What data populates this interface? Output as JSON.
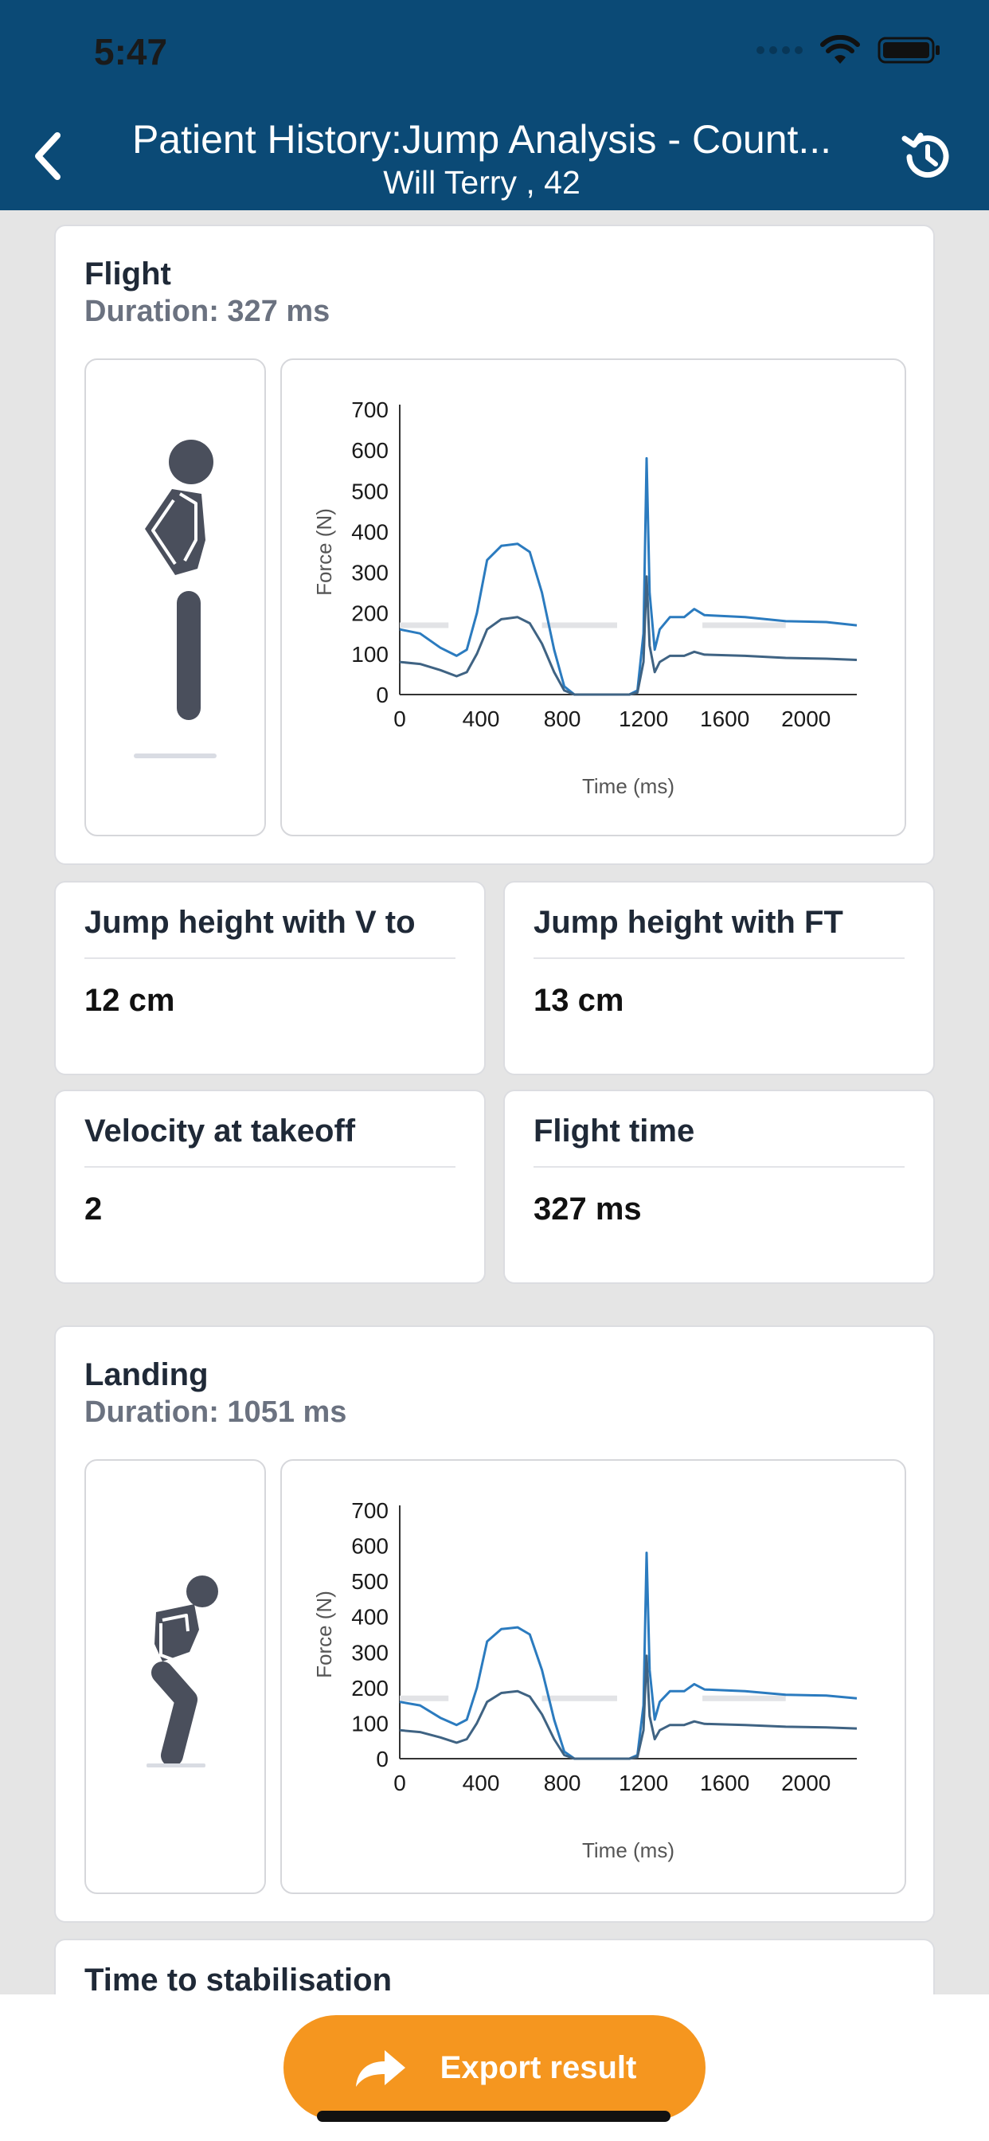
{
  "status_bar": {
    "time": "5:47"
  },
  "header": {
    "title": "Patient History:Jump Analysis - Count...",
    "subtitle": "Will Terry , 42"
  },
  "sections": [
    {
      "title": "Flight",
      "duration": "Duration: 327 ms"
    },
    {
      "title": "Landing",
      "duration": "Duration: 1051 ms"
    }
  ],
  "metrics": [
    {
      "label": "Jump height with V to",
      "value": "12 cm"
    },
    {
      "label": "Jump height with FT",
      "value": "13 cm"
    },
    {
      "label": "Velocity at takeoff",
      "value": "2"
    },
    {
      "label": "Flight time",
      "value": "327 ms"
    }
  ],
  "next_section": {
    "title": "Time to stabilisation"
  },
  "footer": {
    "export_label": "Export result"
  },
  "colors": {
    "header": "#0b4a76",
    "accent": "#f5961f",
    "series_total": "#2b7bbf",
    "series_side": "#3f6383"
  },
  "chart_data": [
    {
      "type": "line",
      "xlabel": "Time (ms)",
      "ylabel": "Force (N)",
      "xlim": [
        0,
        2250
      ],
      "ylim": [
        0,
        700
      ],
      "xticks": [
        0,
        400,
        800,
        1200,
        1600,
        2000
      ],
      "yticks": [
        0,
        100,
        200,
        300,
        400,
        500,
        600,
        700
      ],
      "series": [
        {
          "values": [
            [
              0,
              160
            ],
            [
              100,
              150
            ],
            [
              200,
              115
            ],
            [
              280,
              95
            ],
            [
              330,
              110
            ],
            [
              380,
              200
            ],
            [
              430,
              330
            ],
            [
              500,
              365
            ],
            [
              580,
              370
            ],
            [
              640,
              350
            ],
            [
              700,
              250
            ],
            [
              760,
              110
            ],
            [
              810,
              20
            ],
            [
              860,
              0
            ],
            [
              1130,
              0
            ],
            [
              1170,
              10
            ],
            [
              1200,
              150
            ],
            [
              1215,
              580
            ],
            [
              1230,
              250
            ],
            [
              1255,
              110
            ],
            [
              1280,
              160
            ],
            [
              1330,
              190
            ],
            [
              1400,
              190
            ],
            [
              1450,
              210
            ],
            [
              1500,
              195
            ],
            [
              1700,
              190
            ],
            [
              1900,
              180
            ],
            [
              2100,
              178
            ],
            [
              2250,
              170
            ]
          ]
        },
        {
          "values": [
            [
              0,
              80
            ],
            [
              100,
              75
            ],
            [
              200,
              60
            ],
            [
              280,
              45
            ],
            [
              330,
              55
            ],
            [
              380,
              100
            ],
            [
              430,
              160
            ],
            [
              500,
              185
            ],
            [
              580,
              190
            ],
            [
              640,
              175
            ],
            [
              700,
              125
            ],
            [
              760,
              55
            ],
            [
              810,
              10
            ],
            [
              860,
              0
            ],
            [
              1130,
              0
            ],
            [
              1170,
              5
            ],
            [
              1200,
              80
            ],
            [
              1215,
              290
            ],
            [
              1230,
              120
            ],
            [
              1255,
              55
            ],
            [
              1280,
              80
            ],
            [
              1330,
              95
            ],
            [
              1400,
              95
            ],
            [
              1450,
              105
            ],
            [
              1500,
              98
            ],
            [
              1700,
              95
            ],
            [
              1900,
              90
            ],
            [
              2100,
              88
            ],
            [
              2250,
              85
            ]
          ]
        }
      ],
      "reference_bands": [
        [
          0,
          240,
          170
        ],
        [
          700,
          1070,
          170
        ],
        [
          1490,
          1900,
          170
        ]
      ]
    },
    {
      "type": "line",
      "xlabel": "Time (ms)",
      "ylabel": "Force (N)",
      "xlim": [
        0,
        2250
      ],
      "ylim": [
        0,
        700
      ],
      "xticks": [
        0,
        400,
        800,
        1200,
        1600,
        2000
      ],
      "yticks": [
        0,
        100,
        200,
        300,
        400,
        500,
        600,
        700
      ],
      "series": [
        {
          "values": [
            [
              0,
              160
            ],
            [
              100,
              150
            ],
            [
              200,
              115
            ],
            [
              280,
              95
            ],
            [
              330,
              110
            ],
            [
              380,
              200
            ],
            [
              430,
              330
            ],
            [
              500,
              365
            ],
            [
              580,
              370
            ],
            [
              640,
              350
            ],
            [
              700,
              250
            ],
            [
              760,
              110
            ],
            [
              810,
              20
            ],
            [
              860,
              0
            ],
            [
              1130,
              0
            ],
            [
              1170,
              10
            ],
            [
              1200,
              150
            ],
            [
              1215,
              580
            ],
            [
              1230,
              250
            ],
            [
              1255,
              110
            ],
            [
              1280,
              160
            ],
            [
              1330,
              190
            ],
            [
              1400,
              190
            ],
            [
              1450,
              210
            ],
            [
              1500,
              195
            ],
            [
              1700,
              190
            ],
            [
              1900,
              180
            ],
            [
              2100,
              178
            ],
            [
              2250,
              170
            ]
          ]
        },
        {
          "values": [
            [
              0,
              80
            ],
            [
              100,
              75
            ],
            [
              200,
              60
            ],
            [
              280,
              45
            ],
            [
              330,
              55
            ],
            [
              380,
              100
            ],
            [
              430,
              160
            ],
            [
              500,
              185
            ],
            [
              580,
              190
            ],
            [
              640,
              175
            ],
            [
              700,
              125
            ],
            [
              760,
              55
            ],
            [
              810,
              10
            ],
            [
              860,
              0
            ],
            [
              1130,
              0
            ],
            [
              1170,
              5
            ],
            [
              1200,
              80
            ],
            [
              1215,
              290
            ],
            [
              1230,
              120
            ],
            [
              1255,
              55
            ],
            [
              1280,
              80
            ],
            [
              1330,
              95
            ],
            [
              1400,
              95
            ],
            [
              1450,
              105
            ],
            [
              1500,
              98
            ],
            [
              1700,
              95
            ],
            [
              1900,
              90
            ],
            [
              2100,
              88
            ],
            [
              2250,
              85
            ]
          ]
        }
      ],
      "reference_bands": [
        [
          0,
          240,
          170
        ],
        [
          700,
          1070,
          170
        ],
        [
          1490,
          1900,
          170
        ]
      ]
    }
  ]
}
